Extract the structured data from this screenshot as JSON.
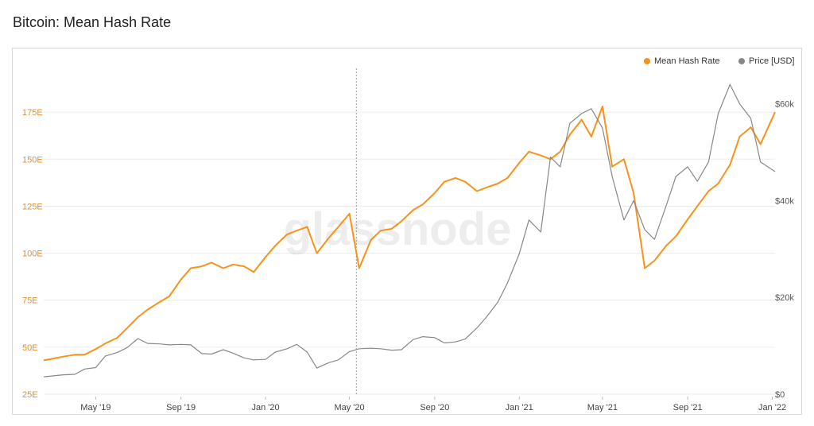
{
  "title": "Bitcoin: Mean Hash Rate",
  "watermark": "glassnode",
  "colors": {
    "hash": "#f7931a",
    "price": "#888888",
    "grid": "#ececec",
    "leftText": "#e58e2a",
    "rightText": "#555555"
  },
  "legend": [
    {
      "label": "Mean Hash Rate",
      "color": "#f7931a"
    },
    {
      "label": "Price [USD]",
      "color": "#888888"
    }
  ],
  "chart_data": {
    "type": "line",
    "title": "Bitcoin: Mean Hash Rate",
    "x_ticks": [
      "May '19",
      "Sep '19",
      "Jan '20",
      "May '20",
      "Sep '20",
      "Jan '21",
      "May '21",
      "Sep '21",
      "Jan '22"
    ],
    "y_left_ticks": [
      "25E",
      "50E",
      "75E",
      "100E",
      "125E",
      "150E",
      "175E"
    ],
    "y_left_values": [
      25,
      50,
      75,
      100,
      125,
      150,
      175
    ],
    "y_left_range": [
      25,
      200
    ],
    "y_right_ticks": [
      "$0",
      "$20k",
      "$40k",
      "$60k"
    ],
    "y_right_values": [
      0,
      20000,
      40000,
      60000
    ],
    "y_right_range": [
      0,
      68000
    ],
    "x_range": [
      "2019-02-15",
      "2022-01-05"
    ],
    "grid": "horizontal",
    "legend_position": "top-right",
    "marker_date": "2020-05-11",
    "series": [
      {
        "name": "Mean Hash Rate",
        "axis": "left",
        "x": [
          "2019-02-15",
          "2019-03-01",
          "2019-03-15",
          "2019-04-01",
          "2019-04-15",
          "2019-05-01",
          "2019-05-15",
          "2019-06-01",
          "2019-06-15",
          "2019-07-01",
          "2019-07-15",
          "2019-08-01",
          "2019-08-15",
          "2019-09-01",
          "2019-09-15",
          "2019-10-01",
          "2019-10-15",
          "2019-11-01",
          "2019-11-15",
          "2019-12-01",
          "2019-12-15",
          "2020-01-01",
          "2020-01-15",
          "2020-02-01",
          "2020-02-15",
          "2020-03-01",
          "2020-03-15",
          "2020-04-01",
          "2020-04-15",
          "2020-05-01",
          "2020-05-15",
          "2020-06-01",
          "2020-06-15",
          "2020-07-01",
          "2020-07-15",
          "2020-08-01",
          "2020-08-15",
          "2020-09-01",
          "2020-09-15",
          "2020-10-01",
          "2020-10-15",
          "2020-11-01",
          "2020-11-15",
          "2020-12-01",
          "2020-12-15",
          "2021-01-01",
          "2021-01-15",
          "2021-02-01",
          "2021-02-15",
          "2021-03-01",
          "2021-03-15",
          "2021-04-01",
          "2021-04-15",
          "2021-05-01",
          "2021-05-15",
          "2021-06-01",
          "2021-06-15",
          "2021-07-01",
          "2021-07-15",
          "2021-08-01",
          "2021-08-15",
          "2021-09-01",
          "2021-09-15",
          "2021-10-01",
          "2021-10-15",
          "2021-11-01",
          "2021-11-15",
          "2021-12-01",
          "2021-12-15",
          "2022-01-05"
        ],
        "values": [
          43,
          44,
          45,
          46,
          46,
          49,
          52,
          55,
          60,
          66,
          70,
          74,
          77,
          86,
          92,
          93,
          95,
          92,
          94,
          93,
          90,
          98,
          104,
          110,
          112,
          114,
          100,
          108,
          114,
          121,
          92,
          107,
          112,
          113,
          117,
          123,
          126,
          132,
          138,
          140,
          138,
          133,
          135,
          137,
          140,
          148,
          154,
          152,
          150,
          154,
          163,
          171,
          162,
          178,
          146,
          150,
          132,
          92,
          96,
          104,
          109,
          118,
          125,
          133,
          137,
          147,
          162,
          167,
          158,
          175
        ]
      },
      {
        "name": "Price [USD]",
        "axis": "right",
        "x": [
          "2019-02-15",
          "2019-03-01",
          "2019-03-15",
          "2019-04-01",
          "2019-04-15",
          "2019-05-01",
          "2019-05-15",
          "2019-06-01",
          "2019-06-15",
          "2019-07-01",
          "2019-07-15",
          "2019-08-01",
          "2019-08-15",
          "2019-09-01",
          "2019-09-15",
          "2019-10-01",
          "2019-10-15",
          "2019-11-01",
          "2019-11-15",
          "2019-12-01",
          "2019-12-15",
          "2020-01-01",
          "2020-01-15",
          "2020-02-01",
          "2020-02-15",
          "2020-03-01",
          "2020-03-15",
          "2020-04-01",
          "2020-04-15",
          "2020-05-01",
          "2020-05-15",
          "2020-06-01",
          "2020-06-15",
          "2020-07-01",
          "2020-07-15",
          "2020-08-01",
          "2020-08-15",
          "2020-09-01",
          "2020-09-15",
          "2020-10-01",
          "2020-10-15",
          "2020-11-01",
          "2020-11-15",
          "2020-12-01",
          "2020-12-15",
          "2021-01-01",
          "2021-01-15",
          "2021-02-01",
          "2021-02-15",
          "2021-03-01",
          "2021-03-15",
          "2021-04-01",
          "2021-04-15",
          "2021-05-01",
          "2021-05-15",
          "2021-06-01",
          "2021-06-15",
          "2021-07-01",
          "2021-07-15",
          "2021-08-01",
          "2021-08-15",
          "2021-09-01",
          "2021-09-15",
          "2021-10-01",
          "2021-10-15",
          "2021-11-01",
          "2021-11-15",
          "2021-12-01",
          "2021-12-15",
          "2022-01-05"
        ],
        "values": [
          3600,
          3800,
          4000,
          4100,
          5200,
          5500,
          7900,
          8600,
          9600,
          11500,
          10500,
          10400,
          10200,
          10300,
          10200,
          8400,
          8300,
          9200,
          8500,
          7500,
          7100,
          7200,
          8700,
          9400,
          10300,
          8700,
          5400,
          6500,
          7100,
          8800,
          9400,
          9500,
          9400,
          9100,
          9200,
          11300,
          11900,
          11700,
          10600,
          10800,
          11400,
          13700,
          16000,
          19000,
          23000,
          29000,
          36000,
          33500,
          49000,
          47000,
          56000,
          58000,
          59000,
          55000,
          45000,
          36000,
          40000,
          34000,
          32000,
          39000,
          45000,
          47000,
          44000,
          48000,
          58000,
          64000,
          60000,
          57000,
          48000,
          46000
        ]
      }
    ]
  }
}
